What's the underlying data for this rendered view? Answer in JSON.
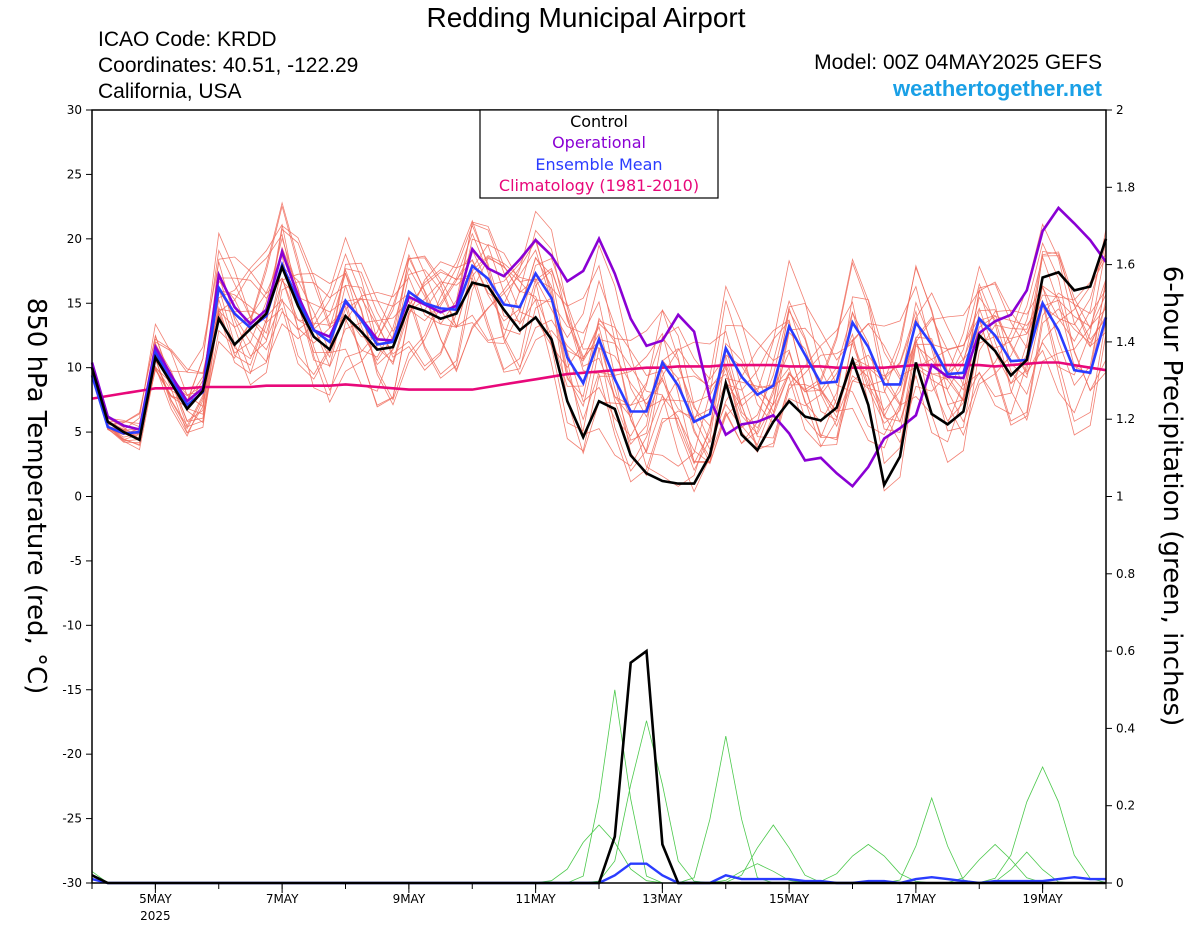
{
  "header": {
    "title": "Redding Municipal Airport",
    "icao": "ICAO Code: KRDD",
    "coords": "Coordinates: 40.51, -122.29",
    "region": "California, USA",
    "model": "Model: 00Z 04MAY2025 GEFS",
    "brand": "weathertogether.net"
  },
  "chart_data": {
    "type": "line",
    "title": "Redding Municipal Airport",
    "ylabel_left": "850 hPa Temperature (red, °C)",
    "ylabel_right": "6-hour Precipitation (green, inches)",
    "ylim_left": [
      -30,
      30
    ],
    "ylim_right": [
      0,
      2
    ],
    "yticks_left": [
      "30",
      "25",
      "20",
      "15",
      "10",
      "5",
      "0",
      "-5",
      "-10",
      "-15",
      "-20",
      "-25",
      "-30"
    ],
    "yticks_right": [
      "2",
      "1.8",
      "1.6",
      "1.4",
      "1.2",
      "1",
      "0.8",
      "0.6",
      "0.4",
      "0.2",
      "0"
    ],
    "x_range": [
      0,
      64
    ],
    "x_unit_note": "6-hour steps from 00Z 04MAY2025",
    "xticks": [
      {
        "x": 4,
        "label": "5MAY",
        "sub": "2025"
      },
      {
        "x": 12,
        "label": "7MAY",
        "sub": ""
      },
      {
        "x": 20,
        "label": "9MAY",
        "sub": ""
      },
      {
        "x": 28,
        "label": "11MAY",
        "sub": ""
      },
      {
        "x": 36,
        "label": "13MAY",
        "sub": ""
      },
      {
        "x": 44,
        "label": "15MAY",
        "sub": ""
      },
      {
        "x": 52,
        "label": "17MAY",
        "sub": ""
      },
      {
        "x": 60,
        "label": "19MAY",
        "sub": ""
      }
    ],
    "legend": {
      "position": "top-center",
      "entries": [
        {
          "label": "Control",
          "color": "#000000"
        },
        {
          "label": "Operational",
          "color": "#8a00d4"
        },
        {
          "label": "Ensemble Mean",
          "color": "#2a3cff"
        },
        {
          "label": "Climatology (1981-2010)",
          "color": "#e8087a"
        }
      ]
    },
    "colors": {
      "member": "#f06a5a",
      "precip_member": "#4cc94c",
      "control": "#000000",
      "operational": "#8a00d4",
      "mean": "#2a3cff",
      "climatology": "#e8087a"
    },
    "temperature": {
      "control": [
        10,
        5.8,
        5,
        4.4,
        10.8,
        8.8,
        6.8,
        8.2,
        13.8,
        11.8,
        13,
        14.2,
        17.8,
        14.8,
        12.4,
        11.4,
        14,
        12.8,
        11.4,
        11.6,
        14.8,
        14.4,
        13.8,
        14.2,
        16.6,
        16.3,
        14.5,
        12.9,
        13.9,
        12.2,
        7.4,
        4.6,
        7.4,
        6.8,
        3.2,
        1.8,
        1.2,
        1,
        1,
        3.2,
        8.8,
        4.8,
        3.6,
        5.8,
        7.4,
        6.2,
        5.9,
        6.9,
        10.6,
        7.1,
        0.9,
        3.1,
        10.4,
        6.4,
        5.6,
        6.6,
        12.5,
        11.3,
        9.4,
        10.6,
        17,
        17.4,
        16,
        16.3,
        20
      ],
      "operational": [
        10.4,
        6.2,
        5.5,
        5.2,
        11.6,
        9.4,
        7.4,
        8.4,
        17.2,
        14.7,
        13.4,
        14.5,
        19,
        15.6,
        12.9,
        12.4,
        15.1,
        13.8,
        12.2,
        12.1,
        15.5,
        14.9,
        14.3,
        14.8,
        19.2,
        17.7,
        17.1,
        18.4,
        19.9,
        18.7,
        16.7,
        17.5,
        20,
        17.3,
        13.8,
        11.7,
        12.1,
        14.1,
        12.8,
        7.6,
        4.8,
        5.6,
        5.8,
        6.3,
        4.9,
        2.8,
        3,
        1.8,
        0.8,
        2.3,
        4.5,
        5.3,
        6.3,
        10.2,
        9.3,
        9.2,
        12.7,
        13.6,
        14.1,
        16,
        20.6,
        22.4,
        21.2,
        19.9,
        18.2
      ],
      "mean": [
        9.4,
        5.4,
        4.9,
        5,
        11.2,
        9,
        7.1,
        8.1,
        16.2,
        14.2,
        13.1,
        14,
        18,
        15.2,
        12.9,
        12,
        15.2,
        13.7,
        11.8,
        12,
        15.9,
        15,
        14.6,
        14.5,
        17.9,
        16.9,
        14.9,
        14.7,
        17.3,
        15.4,
        10.8,
        8.8,
        12.2,
        9.1,
        6.6,
        6.6,
        10.4,
        8.6,
        5.8,
        6.4,
        11.5,
        9.3,
        7.9,
        8.6,
        13.2,
        11,
        8.8,
        8.9,
        13.5,
        11.6,
        8.7,
        8.7,
        13.5,
        11.8,
        9.5,
        9.6,
        13.8,
        12.5,
        10.5,
        10.6,
        15,
        12.9,
        9.8,
        9.6,
        13.9
      ],
      "climatology": [
        7.6,
        7.8,
        8,
        8.2,
        8.4,
        8.4,
        8.4,
        8.5,
        8.5,
        8.5,
        8.5,
        8.6,
        8.6,
        8.6,
        8.6,
        8.6,
        8.7,
        8.6,
        8.5,
        8.4,
        8.3,
        8.3,
        8.3,
        8.3,
        8.3,
        8.5,
        8.7,
        8.9,
        9.1,
        9.3,
        9.5,
        9.6,
        9.7,
        9.8,
        9.9,
        10,
        10,
        10.1,
        10.1,
        10.1,
        10.2,
        10.2,
        10.2,
        10.2,
        10.1,
        10.1,
        10.1,
        10,
        10,
        10,
        10,
        10.1,
        10.2,
        10.2,
        10.2,
        10.2,
        10.2,
        10.1,
        10.2,
        10.3,
        10.4,
        10.4,
        10.2,
        10,
        9.8
      ]
    },
    "precipitation": {
      "control": [
        0.02,
        0,
        0,
        0,
        0,
        0,
        0,
        0,
        0,
        0,
        0,
        0,
        0,
        0,
        0,
        0,
        0,
        0,
        0,
        0,
        0,
        0,
        0,
        0,
        0,
        0,
        0,
        0,
        0,
        0,
        0,
        0,
        0,
        0.12,
        0.57,
        0.6,
        0.1,
        0,
        0,
        0,
        0,
        0,
        0,
        0,
        0,
        0,
        0,
        0,
        0,
        0,
        0,
        0,
        0,
        0,
        0,
        0,
        0,
        0,
        0,
        0,
        0,
        0,
        0,
        0,
        0
      ],
      "mean": [
        0.01,
        0,
        0,
        0,
        0,
        0,
        0,
        0,
        0,
        0,
        0,
        0,
        0,
        0,
        0,
        0,
        0,
        0,
        0,
        0,
        0,
        0,
        0,
        0,
        0,
        0,
        0,
        0,
        0,
        0,
        0,
        0,
        0,
        0.02,
        0.05,
        0.05,
        0.02,
        0,
        0,
        0,
        0.02,
        0.01,
        0.01,
        0.01,
        0.01,
        0.005,
        0.005,
        0,
        0,
        0.005,
        0.005,
        0,
        0.01,
        0.015,
        0.01,
        0.005,
        0,
        0.005,
        0.005,
        0.005,
        0.005,
        0.01,
        0.015,
        0.01,
        0.01
      ]
    }
  }
}
